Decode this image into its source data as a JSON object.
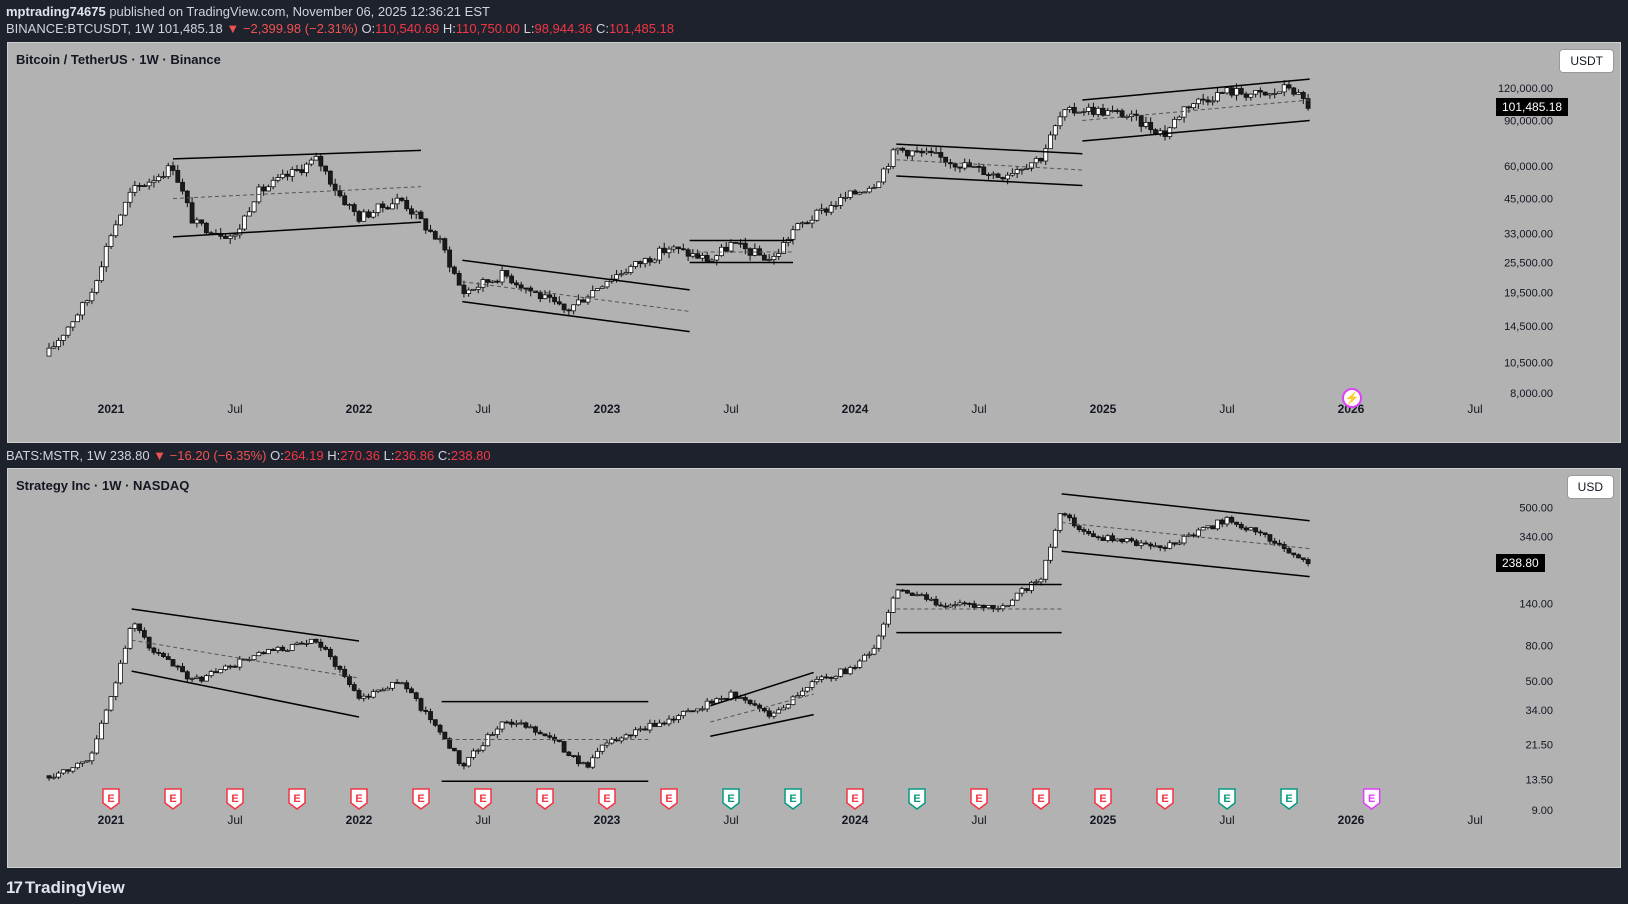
{
  "header": {
    "publisher": "mptrading74675",
    "published_text": " published on TradingView.com, November 06, 2025 12:36:21 EST"
  },
  "top_ticker": {
    "symbol": "BINANCE:BTCUSDT, 1W",
    "last": "101,485.18",
    "change": "▼ −2,399.98 (−2.31%)",
    "o_label": "O:",
    "o": "110,540.69",
    "h_label": "H:",
    "h": "110,750.00",
    "l_label": "L:",
    "l": "98,944.36",
    "c_label": "C:",
    "c": "101,485.18"
  },
  "bottom_ticker": {
    "symbol": "BATS:MSTR, 1W",
    "last": "238.80",
    "change": "▼ −16.20 (−6.35%)",
    "o_label": "O:",
    "o": "264.19",
    "h_label": "H:",
    "h": "270.36",
    "l_label": "L:",
    "l": "236.86",
    "c_label": "C:",
    "c": "238.80"
  },
  "footer": {
    "brand": "TradingView",
    "logo": "17"
  },
  "colors": {
    "pane_bg": "#b2b2b2",
    "candle_up": "#ffffff",
    "candle_down": "#1a1a1a",
    "earnings_red": "#f23645",
    "earnings_green": "#089981",
    "earnings_future": "#e040fb"
  },
  "chart_data": [
    {
      "type": "candlestick",
      "title": "Bitcoin / TetherUS · 1W · Binance",
      "currency": "USDT",
      "log_scale": true,
      "ylim": [
        7000,
        150000
      ],
      "y_ticks": [
        "8,000.00",
        "10,500.00",
        "14,500.00",
        "19,500.00",
        "25,500.00",
        "33,000.00",
        "45,000.00",
        "60,000.00",
        "90,000.00",
        "120,000.00"
      ],
      "y_tick_values": [
        8000,
        10500,
        14500,
        19500,
        25500,
        33000,
        45000,
        60000,
        90000,
        120000
      ],
      "x_ticks": [
        "2021",
        "Jul",
        "2022",
        "Jul",
        "2023",
        "Jul",
        "2024",
        "Jul",
        "2025",
        "Jul",
        "2026",
        "Jul"
      ],
      "x_tick_dates": [
        "2021-01",
        "2021-07",
        "2022-01",
        "2022-07",
        "2023-01",
        "2023-07",
        "2024-01",
        "2024-07",
        "2025-01",
        "2025-07",
        "2026-01",
        "2026-07"
      ],
      "last_price": "101,485.18",
      "trend_anchors": [
        [
          "2020-10",
          11500
        ],
        [
          "2020-12",
          19000
        ],
        [
          "2021-01",
          33000
        ],
        [
          "2021-02",
          48000
        ],
        [
          "2021-04",
          60000
        ],
        [
          "2021-05",
          36000
        ],
        [
          "2021-07",
          32000
        ],
        [
          "2021-08",
          47000
        ],
        [
          "2021-11",
          64000
        ],
        [
          "2021-12",
          47000
        ],
        [
          "2022-01",
          38000
        ],
        [
          "2022-03",
          45000
        ],
        [
          "2022-05",
          30000
        ],
        [
          "2022-06",
          19500
        ],
        [
          "2022-08",
          23000
        ],
        [
          "2022-11",
          16500
        ],
        [
          "2023-01",
          22000
        ],
        [
          "2023-04",
          29000
        ],
        [
          "2023-06",
          26000
        ],
        [
          "2023-07",
          30000
        ],
        [
          "2023-09",
          26000
        ],
        [
          "2023-10",
          34000
        ],
        [
          "2023-12",
          43000
        ],
        [
          "2024-02",
          52000
        ],
        [
          "2024-03",
          70000
        ],
        [
          "2024-05",
          65000
        ],
        [
          "2024-08",
          55000
        ],
        [
          "2024-10",
          65000
        ],
        [
          "2024-11",
          95000
        ],
        [
          "2024-12",
          100000
        ],
        [
          "2025-02",
          95000
        ],
        [
          "2025-04",
          80000
        ],
        [
          "2025-05",
          103000
        ],
        [
          "2025-07",
          117000
        ],
        [
          "2025-09",
          112000
        ],
        [
          "2025-10",
          122000
        ],
        [
          "2025-11",
          101485
        ]
      ],
      "channels": [
        {
          "upper": [
            [
              "2021-04",
              64000
            ],
            [
              "2022-04",
              69000
            ]
          ],
          "lower": [
            [
              "2021-04",
              32000
            ],
            [
              "2022-04",
              36500
            ]
          ],
          "mid": [
            [
              "2021-04",
              45000
            ],
            [
              "2022-04",
              50000
            ]
          ]
        },
        {
          "upper": [
            [
              "2022-06",
              26000
            ],
            [
              "2023-05",
              20000
            ]
          ],
          "lower": [
            [
              "2022-06",
              18000
            ],
            [
              "2023-05",
              13800
            ]
          ],
          "mid": [
            [
              "2022-06",
              21500
            ],
            [
              "2023-05",
              16500
            ]
          ]
        },
        {
          "upper": [
            [
              "2023-05",
              31000
            ],
            [
              "2023-10",
              31000
            ]
          ],
          "lower": [
            [
              "2023-05",
              25500
            ],
            [
              "2023-10",
              25500
            ]
          ],
          "mid": [
            [
              "2023-05",
              28000
            ],
            [
              "2023-10",
              28000
            ]
          ]
        },
        {
          "upper": [
            [
              "2024-03",
              73000
            ],
            [
              "2024-12",
              67000
            ]
          ],
          "lower": [
            [
              "2024-03",
              55000
            ],
            [
              "2024-12",
              50500
            ]
          ],
          "mid": [
            [
              "2024-03",
              63500
            ],
            [
              "2024-12",
              58000
            ]
          ]
        },
        {
          "upper": [
            [
              "2024-12",
              108000
            ],
            [
              "2025-11",
              130000
            ]
          ],
          "lower": [
            [
              "2024-12",
              75000
            ],
            [
              "2025-11",
              90000
            ]
          ],
          "mid": [
            [
              "2024-12",
              90000
            ],
            [
              "2025-11",
              108000
            ]
          ]
        }
      ]
    },
    {
      "type": "candlestick",
      "title": "Strategy Inc · 1W · NASDAQ",
      "currency": "USD",
      "log_scale": true,
      "ylim": [
        8,
        640
      ],
      "y_ticks": [
        "9.00",
        "13.50",
        "21.50",
        "34.00",
        "50.00",
        "80.00",
        "140.00",
        "340.00",
        "500.00"
      ],
      "y_tick_values": [
        9,
        13.5,
        21.5,
        34,
        50,
        80,
        140,
        340,
        500
      ],
      "x_ticks": [
        "2021",
        "Jul",
        "2022",
        "Jul",
        "2023",
        "Jul",
        "2024",
        "Jul",
        "2025",
        "Jul",
        "2026",
        "Jul"
      ],
      "x_tick_dates": [
        "2021-01",
        "2021-07",
        "2022-01",
        "2022-07",
        "2023-01",
        "2023-07",
        "2024-01",
        "2024-07",
        "2025-01",
        "2025-07",
        "2026-01",
        "2026-07"
      ],
      "last_price": "238.80",
      "trend_anchors": [
        [
          "2020-10",
          14
        ],
        [
          "2020-12",
          18
        ],
        [
          "2021-01",
          40
        ],
        [
          "2021-02",
          110
        ],
        [
          "2021-03",
          75
        ],
        [
          "2021-05",
          50
        ],
        [
          "2021-08",
          70
        ],
        [
          "2021-11",
          85
        ],
        [
          "2021-12",
          60
        ],
        [
          "2022-01",
          40
        ],
        [
          "2022-03",
          50
        ],
        [
          "2022-05",
          25
        ],
        [
          "2022-06",
          16
        ],
        [
          "2022-08",
          30
        ],
        [
          "2022-10",
          25
        ],
        [
          "2022-12",
          16
        ],
        [
          "2023-01",
          22
        ],
        [
          "2023-04",
          30
        ],
        [
          "2023-07",
          42
        ],
        [
          "2023-09",
          32
        ],
        [
          "2023-11",
          50
        ],
        [
          "2024-01",
          60
        ],
        [
          "2024-02",
          80
        ],
        [
          "2024-03",
          170
        ],
        [
          "2024-05",
          140
        ],
        [
          "2024-08",
          130
        ],
        [
          "2024-10",
          200
        ],
        [
          "2024-11",
          480
        ],
        [
          "2024-12",
          350
        ],
        [
          "2025-02",
          320
        ],
        [
          "2025-04",
          300
        ],
        [
          "2025-06",
          380
        ],
        [
          "2025-07",
          430
        ],
        [
          "2025-09",
          330
        ],
        [
          "2025-11",
          238.8
        ]
      ],
      "channels": [
        {
          "upper": [
            [
              "2021-02",
              130
            ],
            [
              "2022-01",
              85
            ]
          ],
          "lower": [
            [
              "2021-02",
              57
            ],
            [
              "2022-01",
              31
            ]
          ],
          "mid": [
            [
              "2021-02",
              86
            ],
            [
              "2022-01",
              52
            ]
          ]
        },
        {
          "upper": [
            [
              "2022-05",
              38
            ],
            [
              "2023-03",
              38
            ]
          ],
          "lower": [
            [
              "2022-05",
              13.2
            ],
            [
              "2023-03",
              13.2
            ]
          ],
          "mid": [
            [
              "2022-05",
              23
            ],
            [
              "2023-03",
              23
            ]
          ]
        },
        {
          "upper": [
            [
              "2023-06",
              36
            ],
            [
              "2023-11",
              56
            ]
          ],
          "lower": [
            [
              "2023-06",
              24
            ],
            [
              "2023-11",
              32
            ]
          ],
          "mid": [
            [
              "2023-06",
              29
            ],
            [
              "2023-11",
              42
            ]
          ]
        },
        {
          "upper": [
            [
              "2024-03",
              180
            ],
            [
              "2024-11",
              180
            ]
          ],
          "lower": [
            [
              "2024-03",
              95
            ],
            [
              "2024-11",
              95
            ]
          ],
          "mid": [
            [
              "2024-03",
              130
            ],
            [
              "2024-11",
              130
            ]
          ]
        },
        {
          "upper": [
            [
              "2024-11",
              600
            ],
            [
              "2025-11",
              420
            ]
          ],
          "lower": [
            [
              "2024-11",
              280
            ],
            [
              "2025-11",
              200
            ]
          ],
          "mid": [
            [
              "2024-11",
              410
            ],
            [
              "2025-11",
              290
            ]
          ]
        }
      ],
      "earnings": [
        {
          "date": "2021-01",
          "kind": "red"
        },
        {
          "date": "2021-04",
          "kind": "red"
        },
        {
          "date": "2021-07",
          "kind": "red"
        },
        {
          "date": "2021-10",
          "kind": "red"
        },
        {
          "date": "2022-01",
          "kind": "red"
        },
        {
          "date": "2022-04",
          "kind": "red"
        },
        {
          "date": "2022-07",
          "kind": "red"
        },
        {
          "date": "2022-10",
          "kind": "red"
        },
        {
          "date": "2023-01",
          "kind": "red"
        },
        {
          "date": "2023-04",
          "kind": "red"
        },
        {
          "date": "2023-07",
          "kind": "green"
        },
        {
          "date": "2023-10",
          "kind": "green"
        },
        {
          "date": "2024-01",
          "kind": "red"
        },
        {
          "date": "2024-04",
          "kind": "green"
        },
        {
          "date": "2024-07",
          "kind": "red"
        },
        {
          "date": "2024-10",
          "kind": "red"
        },
        {
          "date": "2025-01",
          "kind": "red"
        },
        {
          "date": "2025-04",
          "kind": "red"
        },
        {
          "date": "2025-07",
          "kind": "green"
        },
        {
          "date": "2025-10",
          "kind": "green"
        },
        {
          "date": "2026-02",
          "kind": "future"
        }
      ]
    }
  ]
}
